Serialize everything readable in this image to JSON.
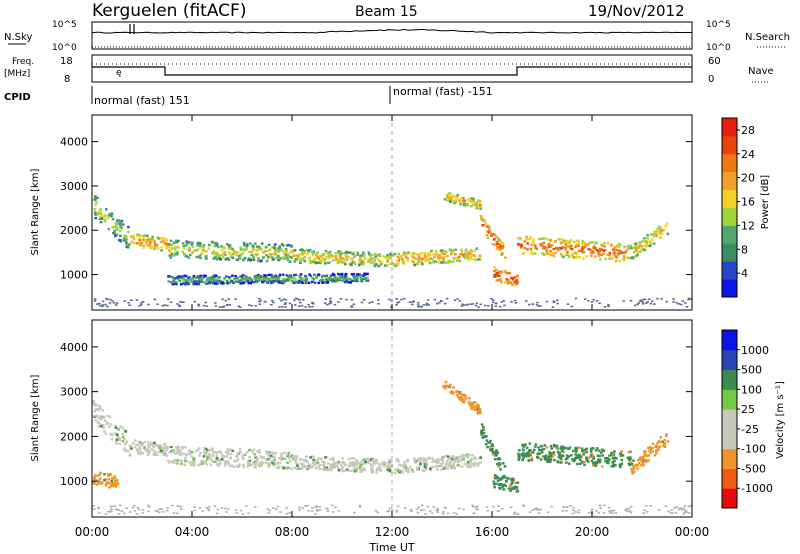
{
  "header": {
    "station": "Kerguelen (fitACF)",
    "beam": "Beam 15",
    "date": "19/Nov/2012"
  },
  "panels": {
    "nsky": {
      "label": "N.Sky",
      "right_label": "N.Search",
      "ticks": [
        "10^5",
        "10^0"
      ]
    },
    "freq": {
      "label": "Freq.",
      "unit": "[MHz]",
      "left_ticks": [
        "18",
        "8"
      ],
      "right_label": "Nave",
      "right_ticks": [
        "60",
        "0"
      ]
    },
    "cpid": {
      "label": "CPID",
      "modes": [
        "normal (fast) 151",
        "normal (fast) -151"
      ]
    }
  },
  "colors": {
    "power": [
      "#0a14e6",
      "#2846c8",
      "#3c8c64",
      "#50aa6e",
      "#a0d23c",
      "#f0d228",
      "#f0a028",
      "#f07814",
      "#e6460a",
      "#e61e0a"
    ],
    "velocity": [
      "#e60a0a",
      "#f05a14",
      "#f09628",
      "#c8c8bc",
      "#c8c8bc",
      "#78c846",
      "#3c8c50",
      "#2846b4",
      "#0a14e6"
    ]
  },
  "chart_data": [
    {
      "type": "heatmap",
      "title": "Power",
      "ylabel": "Slant Range [km]",
      "ylim": [
        200,
        4600
      ],
      "yticks": [
        1000,
        2000,
        3000,
        4000
      ],
      "xlim": [
        0,
        24
      ],
      "colorbar": {
        "label": "Power [dB]",
        "ticks": [
          "4",
          "8",
          "12",
          "16",
          "20",
          "24",
          "28"
        ],
        "range": [
          0,
          30
        ]
      },
      "bands": [
        {
          "t": [
            0,
            1.5
          ],
          "r0": 2600,
          "r1": 1800,
          "w": 500,
          "v": 16
        },
        {
          "t": [
            1.5,
            3
          ],
          "r0": 1800,
          "r1": 1700,
          "w": 300,
          "v": 22
        },
        {
          "t": [
            3,
            8
          ],
          "r0": 1600,
          "r1": 1500,
          "w": 400,
          "v": 17
        },
        {
          "t": [
            8,
            12
          ],
          "r0": 1450,
          "r1": 1350,
          "w": 300,
          "v": 19
        },
        {
          "t": [
            12,
            15.5
          ],
          "r0": 1350,
          "r1": 1500,
          "w": 300,
          "v": 21
        },
        {
          "t": [
            15.5,
            16.5
          ],
          "r0": 2200,
          "r1": 1500,
          "w": 300,
          "v": 26
        },
        {
          "t": [
            16,
            17
          ],
          "r0": 1050,
          "r1": 900,
          "w": 300,
          "v": 27
        },
        {
          "t": [
            17,
            21.5
          ],
          "r0": 1700,
          "r1": 1500,
          "w": 400,
          "v": 24
        },
        {
          "t": [
            21.5,
            23
          ],
          "r0": 1500,
          "r1": 2100,
          "w": 300,
          "v": 20
        },
        {
          "t": [
            3,
            11
          ],
          "r0": 900,
          "r1": 950,
          "w": 200,
          "v": 12
        },
        {
          "t": [
            14,
            15.5
          ],
          "r0": 2800,
          "r1": 2600,
          "w": 200,
          "v": 20
        }
      ]
    },
    {
      "type": "heatmap",
      "title": "Velocity",
      "ylabel": "Slant Range [km]",
      "ylim": [
        200,
        4600
      ],
      "yticks": [
        1000,
        2000,
        3000,
        4000
      ],
      "xlim": [
        0,
        24
      ],
      "xticks": [
        "00:00",
        "04:00",
        "08:00",
        "12:00",
        "16:00",
        "20:00",
        "00:00"
      ],
      "xlabel": "Time UT",
      "colorbar": {
        "label": "Velocity [m s⁻¹]",
        "ticks": [
          "-1000",
          "-500",
          "-100",
          "-25",
          "25",
          "100",
          "500",
          "1000"
        ]
      },
      "bands": [
        {
          "t": [
            0,
            1.5
          ],
          "r0": 2600,
          "r1": 1800,
          "w": 500,
          "v": 0
        },
        {
          "t": [
            1.5,
            3
          ],
          "r0": 1800,
          "r1": 1700,
          "w": 300,
          "v": 0
        },
        {
          "t": [
            3,
            8
          ],
          "r0": 1600,
          "r1": 1500,
          "w": 400,
          "v": 0
        },
        {
          "t": [
            8,
            12
          ],
          "r0": 1450,
          "r1": 1350,
          "w": 300,
          "v": 0
        },
        {
          "t": [
            12,
            15.5
          ],
          "r0": 1350,
          "r1": 1500,
          "w": 300,
          "v": 0
        },
        {
          "t": [
            15.5,
            16.5
          ],
          "r0": 2200,
          "r1": 1200,
          "w": 300,
          "v": 200
        },
        {
          "t": [
            16,
            17
          ],
          "r0": 1050,
          "r1": 900,
          "w": 300,
          "v": 200
        },
        {
          "t": [
            17,
            21.5
          ],
          "r0": 1700,
          "r1": 1500,
          "w": 400,
          "v": 200
        },
        {
          "t": [
            21.5,
            23
          ],
          "r0": 1300,
          "r1": 2000,
          "w": 300,
          "v": -300
        },
        {
          "t": [
            0,
            1
          ],
          "r0": 1100,
          "r1": 1000,
          "w": 300,
          "v": -300
        },
        {
          "t": [
            14,
            15.5
          ],
          "r0": 3200,
          "r1": 2600,
          "w": 200,
          "v": -300
        }
      ]
    }
  ]
}
